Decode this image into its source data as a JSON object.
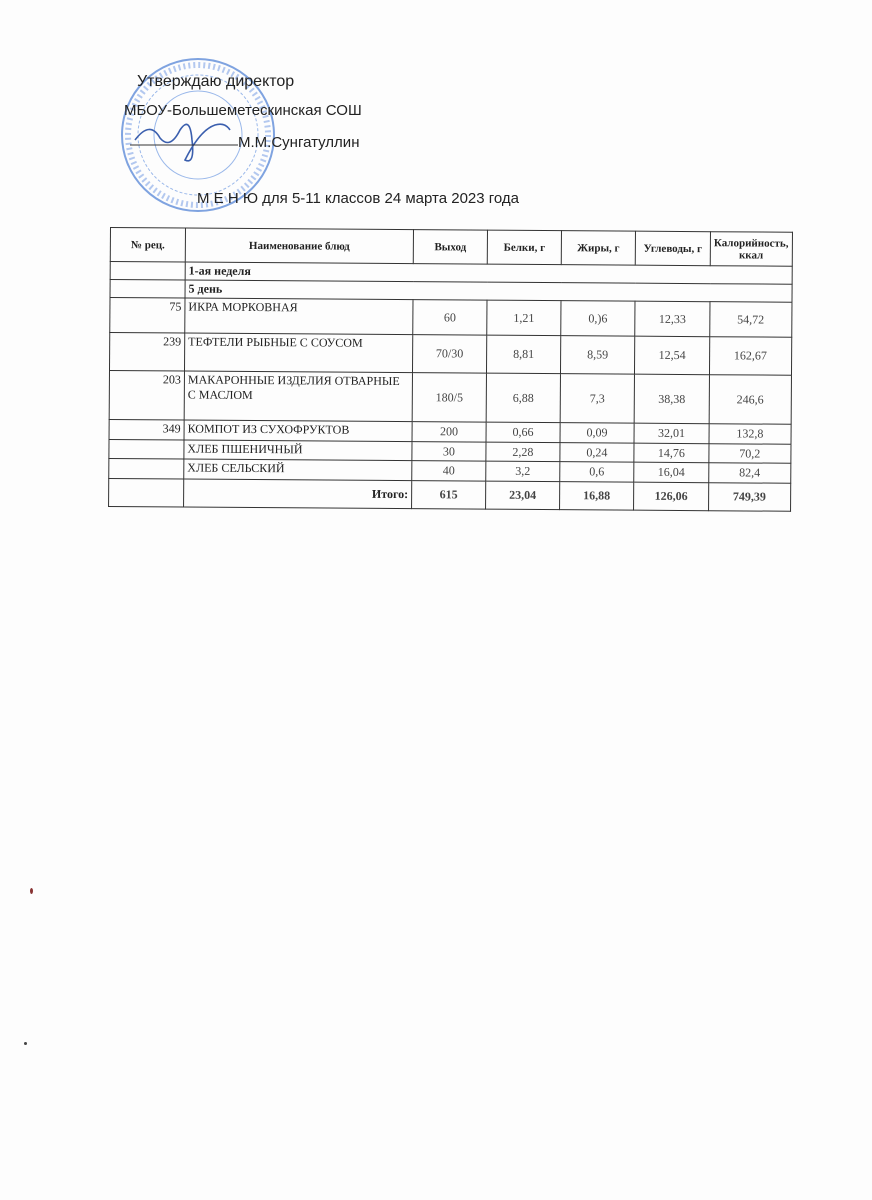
{
  "approval": {
    "line1": "Утверждаю  директор",
    "line2": "МБОУ-Большеметескинская СОШ",
    "signatory": "М.М.Сунгатуллин"
  },
  "title": "М Е Н Ю  для 5-11 классов  24 марта   2023 года",
  "table": {
    "headers": [
      "№ рец.",
      "Наименование блюд",
      "Выход",
      "Белки, г",
      "Жиры, г",
      "Углеводы, г",
      "Калорийность, ккал"
    ],
    "week": "1-ая неделя",
    "day": "5 день",
    "rows": [
      {
        "rec": "75",
        "name": "ИКРА МОРКОВНАЯ",
        "out": "60",
        "prot": "1,21",
        "fat": "0,)6",
        "carb": "12,33",
        "kcal": "54,72"
      },
      {
        "rec": "239",
        "name": "ТЕФТЕЛИ РЫБНЫЕ С СОУСОМ",
        "out": "70/30",
        "prot": "8,81",
        "fat": "8,59",
        "carb": "12,54",
        "kcal": "162,67"
      },
      {
        "rec": "203",
        "name": "МАКАРОННЫЕ ИЗДЕЛИЯ ОТВАРНЫЕ С МАСЛОМ",
        "out": "180/5",
        "prot": "6,88",
        "fat": "7,3",
        "carb": "38,38",
        "kcal": "246,6"
      },
      {
        "rec": "349",
        "name": "КОМПОТ ИЗ СУХОФРУКТОВ",
        "out": "200",
        "prot": "0,66",
        "fat": "0,09",
        "carb": "32,01",
        "kcal": "132,8"
      },
      {
        "rec": "",
        "name": "ХЛЕБ ПШЕНИЧНЫЙ",
        "out": "30",
        "prot": "2,28",
        "fat": "0,24",
        "carb": "14,76",
        "kcal": "70,2"
      },
      {
        "rec": "",
        "name": "ХЛЕБ СЕЛЬСКИЙ",
        "out": "40",
        "prot": "3,2",
        "fat": "0,6",
        "carb": "16,04",
        "kcal": "82,4"
      }
    ],
    "total": {
      "label": "Итого:",
      "out": "615",
      "prot": "23,04",
      "fat": "16,88",
      "carb": "126,06",
      "kcal": "749,39"
    }
  },
  "stamp_color": "#4a7fd0"
}
